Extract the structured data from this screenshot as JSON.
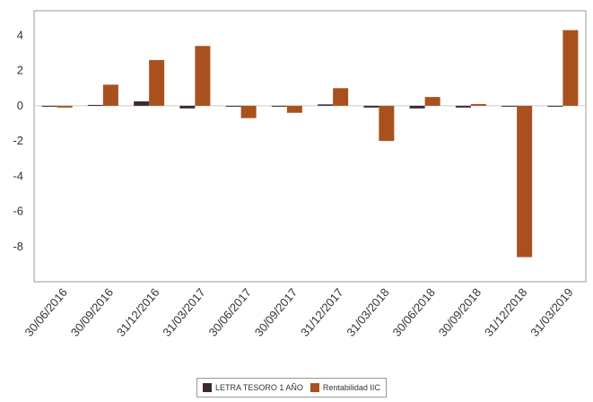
{
  "chart_data": {
    "type": "bar",
    "categories": [
      "30/06/2016",
      "30/09/2016",
      "31/12/2016",
      "31/03/2017",
      "30/06/2017",
      "30/09/2017",
      "31/12/2017",
      "31/03/2018",
      "30/06/2018",
      "30/09/2018",
      "31/12/2018",
      "31/03/2019"
    ],
    "series": [
      {
        "name": "LETRA TESORO 1 AÑO",
        "color": "#3a2a33",
        "values": [
          -0.05,
          0.05,
          0.25,
          -0.15,
          -0.05,
          -0.03,
          0.08,
          -0.1,
          -0.15,
          -0.1,
          -0.05,
          -0.05
        ]
      },
      {
        "name": "Rentabilidad IIC",
        "color": "#a8511f",
        "values": [
          -0.1,
          1.2,
          2.6,
          3.4,
          -0.7,
          -0.4,
          1.0,
          -2.0,
          0.5,
          0.1,
          -8.6,
          4.3
        ]
      }
    ],
    "yticks": [
      4,
      2,
      0,
      -2,
      -4,
      -6,
      -8
    ],
    "ylim": [
      -10,
      5.4
    ],
    "grid": false,
    "legend_position": "bottom"
  }
}
